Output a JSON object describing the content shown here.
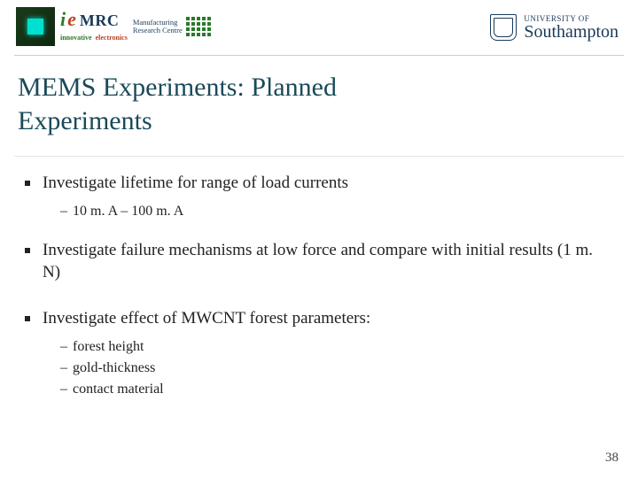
{
  "header": {
    "logo_left": {
      "ie": "ie",
      "mrc": "MRC",
      "sub1": "innovative",
      "sub2": "electronics",
      "mfg1": "Manufacturing",
      "mfg2": "Research Centre"
    },
    "logo_right": {
      "small": "UNIVERSITY OF",
      "big": "Southampton"
    }
  },
  "title_line1": "MEMS Experiments: Planned",
  "title_line2": "Experiments",
  "bullets": {
    "b1": "Investigate lifetime for range of load currents",
    "b1s1": "10 m. A – 100 m. A",
    "b2": "Investigate failure mechanisms at low force and compare with initial results (1 m. N)",
    "b3": "Investigate effect of MWCNT forest parameters:",
    "b3s1": "forest height",
    "b3s2": "gold-thickness",
    "b3s3": "contact material"
  },
  "page_number": "38",
  "colors": {
    "title": "#1a4a5a",
    "text": "#222222",
    "divider": "#cccccc",
    "background": "#ffffff"
  },
  "typography": {
    "title_fontsize": 30,
    "body_fontsize": 19,
    "sub_fontsize": 16,
    "font_family": "Georgia, serif"
  }
}
